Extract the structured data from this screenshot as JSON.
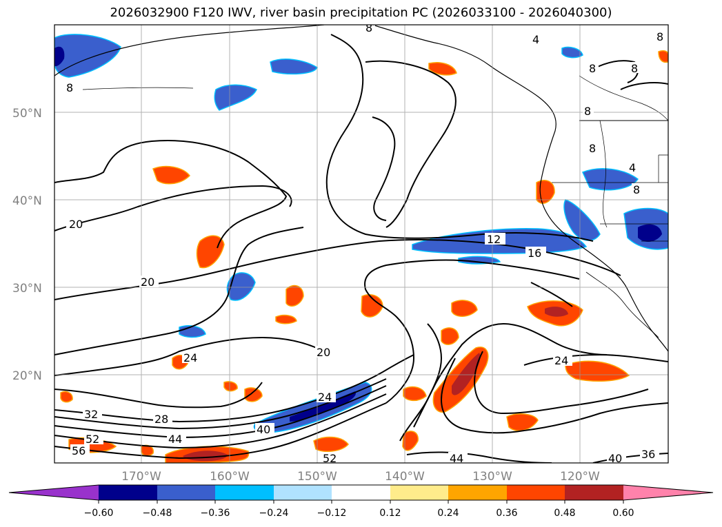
{
  "map": {
    "title": "2026032900 F120 IWV, river basin precipitation PC (2026033100 - 2026040300)",
    "lat_labels": [
      {
        "label": "50°N",
        "lat": 50
      },
      {
        "label": "40°N",
        "lat": 40
      },
      {
        "label": "30°N",
        "lat": 30
      },
      {
        "label": "20°N",
        "lat": 20
      }
    ],
    "lon_labels": [
      {
        "label": "170°W",
        "lon": -170
      },
      {
        "label": "160°W",
        "lon": -160
      },
      {
        "label": "150°W",
        "lon": -150
      },
      {
        "label": "140°W",
        "lon": -140
      },
      {
        "label": "130°W",
        "lon": -130
      },
      {
        "label": "120°W",
        "lon": -120
      }
    ],
    "contour_labels": [
      "8",
      "4",
      "8",
      "8",
      "8",
      "8",
      "20",
      "12",
      "16",
      "20",
      "24",
      "20",
      "24",
      "32",
      "28",
      "44",
      "52",
      "56",
      "40",
      "24",
      "52",
      "44",
      "40",
      "36",
      "8",
      "4",
      "8",
      "8"
    ],
    "colorbar": {
      "ticks": [
        "−0.60",
        "−0.48",
        "−0.36",
        "−0.24",
        "−0.12",
        "0.12",
        "0.24",
        "0.36",
        "0.48",
        "0.60"
      ],
      "colors": [
        "#9932cc",
        "#00008b",
        "#3a5fcd",
        "#00bfff",
        "#b0e2ff",
        "#ffffff",
        "#ffec8b",
        "#ffa500",
        "#ff4500",
        "#b22222",
        "#ff82ab"
      ]
    }
  }
}
